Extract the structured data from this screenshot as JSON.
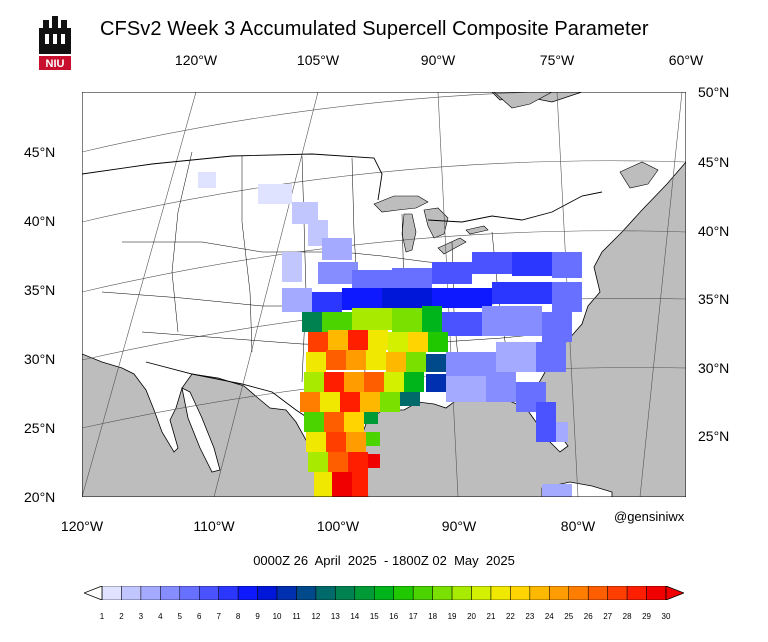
{
  "title": "CFSv2 Week 3 Accumulated Supercell Composite Parameter",
  "logo_text": "NIU",
  "credit": "@gensiniwx",
  "date_range": "0000Z 26  April  2025  - 1800Z 02  May  2025",
  "top_lon_labels": [
    "120°W",
    "105°W",
    "90°W",
    "75°W",
    "60°W"
  ],
  "bottom_lon_labels": [
    "120°W",
    "110°W",
    "100°W",
    "90°W",
    "80°W"
  ],
  "left_lat_labels": [
    "45°N",
    "40°N",
    "35°N",
    "30°N",
    "25°N",
    "20°N"
  ],
  "right_lat_labels": [
    "50°N",
    "45°N",
    "40°N",
    "35°N",
    "30°N",
    "25°N"
  ],
  "colors": {
    "land": "#ffffff",
    "ocean": "#bdbdbd",
    "border": "#000000"
  },
  "colorbar": {
    "labels": [
      "1",
      "2",
      "3",
      "4",
      "5",
      "6",
      "7",
      "8",
      "9",
      "10",
      "11",
      "12",
      "13",
      "14",
      "15",
      "16",
      "17",
      "18",
      "19",
      "20",
      "21",
      "22",
      "23",
      "24",
      "25",
      "26",
      "27",
      "28",
      "29",
      "30"
    ],
    "colors": [
      "#e0e3ff",
      "#c2c6ff",
      "#a4aaff",
      "#868dff",
      "#6870ff",
      "#4a53ff",
      "#2b36ff",
      "#0f19ff",
      "#0016d8",
      "#0030b0",
      "#004a8c",
      "#006a6a",
      "#008250",
      "#009a36",
      "#00b41c",
      "#20c800",
      "#4cd400",
      "#7ae000",
      "#a8ea00",
      "#d2f000",
      "#f0e800",
      "#ffd400",
      "#ffb800",
      "#ff9c00",
      "#ff7e00",
      "#ff5e00",
      "#ff3e00",
      "#ff1e00",
      "#f00000"
    ]
  }
}
